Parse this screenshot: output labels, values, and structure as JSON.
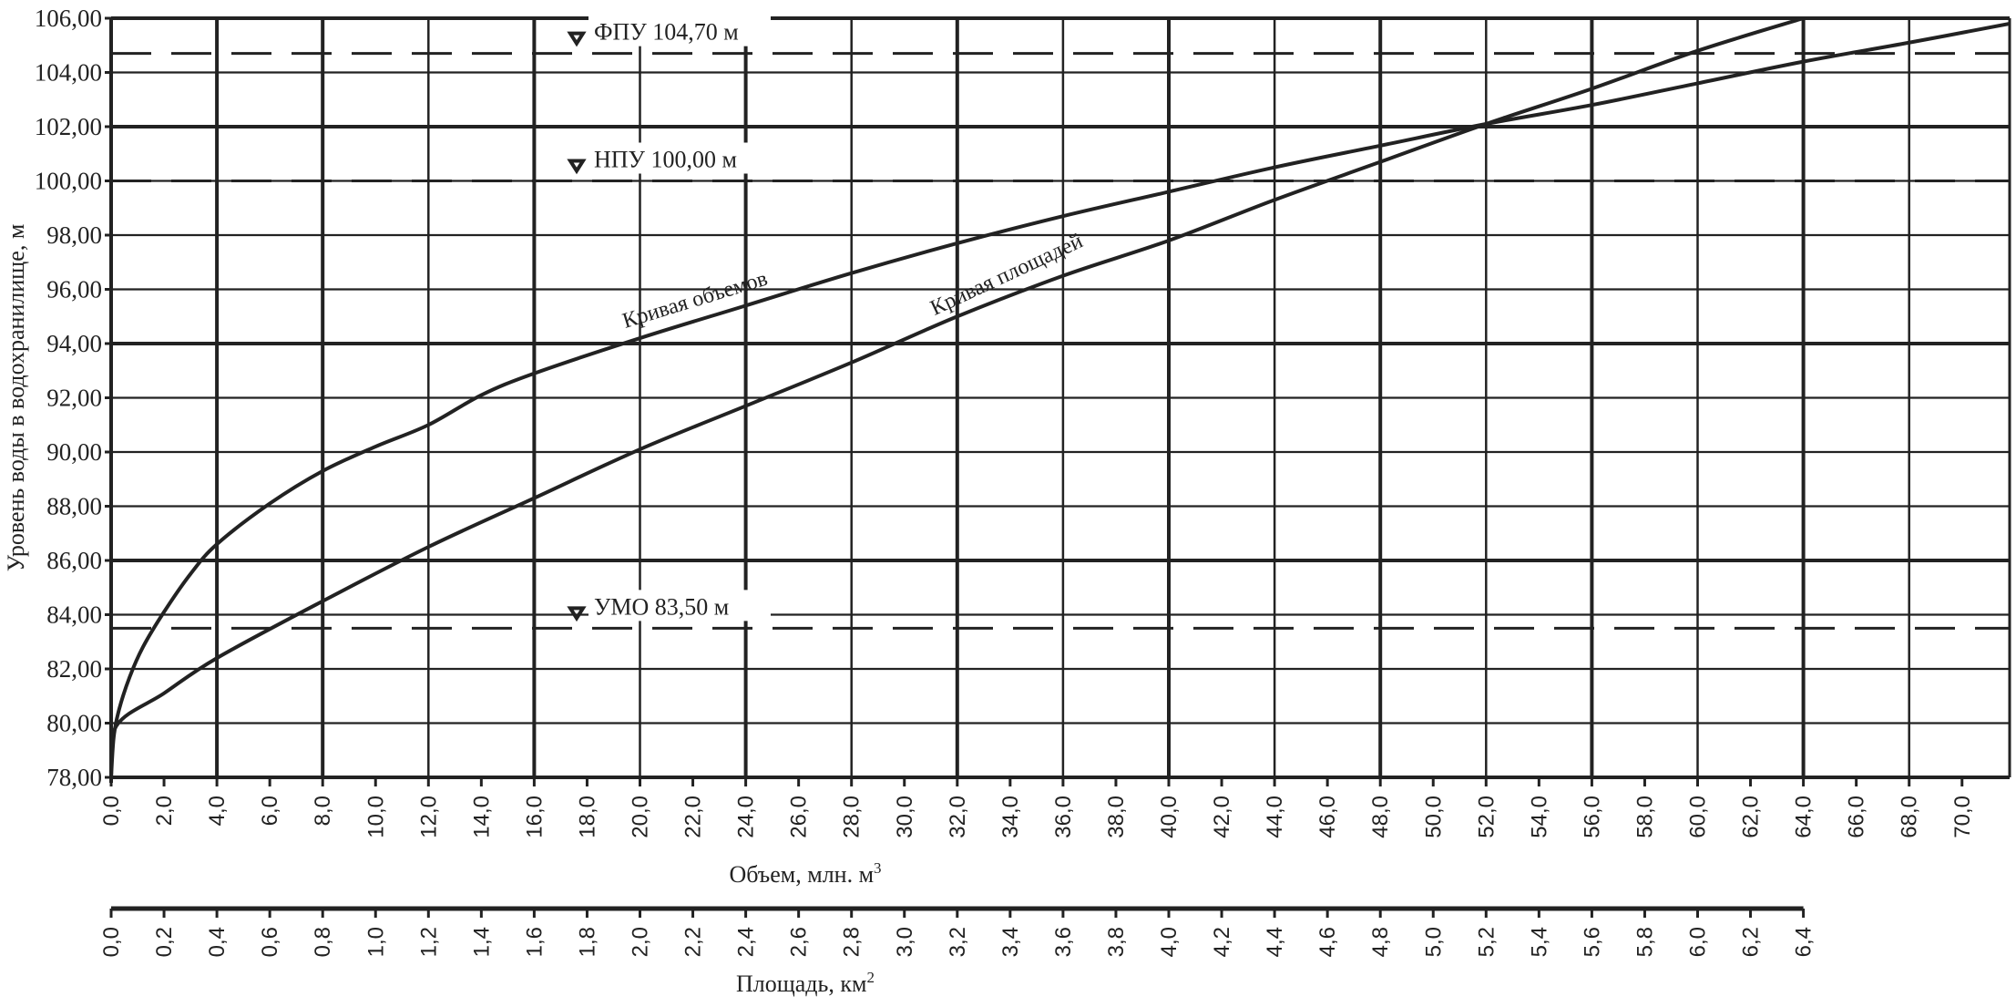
{
  "chart_data": {
    "type": "line",
    "title": "",
    "ylabel": "Уровень воды в водохранилище, м",
    "xlabel": "Объем, млн. м",
    "xlabel_sup": "3",
    "x2label": "Площадь, км",
    "x2label_sup": "2",
    "ylim": [
      78,
      106
    ],
    "xlim": [
      0,
      71.8
    ],
    "x2lim": [
      0,
      7.18
    ],
    "grid": true,
    "line_color": "#222222",
    "y_ticks": [
      "78,00",
      "80,00",
      "82,00",
      "84,00",
      "86,00",
      "88,00",
      "90,00",
      "92,00",
      "94,00",
      "96,00",
      "98,00",
      "100,00",
      "102,00",
      "104,00",
      "106,00"
    ],
    "x_ticks": [
      "0,0",
      "2,0",
      "4,0",
      "6,0",
      "8,0",
      "10,0",
      "12,0",
      "14,0",
      "16,0",
      "18,0",
      "20,0",
      "22,0",
      "24,0",
      "26,0",
      "28,0",
      "30,0",
      "32,0",
      "34,0",
      "36,0",
      "38,0",
      "40,0",
      "42,0",
      "44,0",
      "46,0",
      "48,0",
      "50,0",
      "52,0",
      "54,0",
      "56,0",
      "58,0",
      "60,0",
      "62,0",
      "64,0",
      "66,0",
      "68,0",
      "70,0"
    ],
    "x2_ticks": [
      "0,0",
      "0,2",
      "0,4",
      "0,6",
      "0,8",
      "1,0",
      "1,2",
      "1,4",
      "1,6",
      "1,8",
      "2,0",
      "2,2",
      "2,4",
      "2,6",
      "2,8",
      "3,0",
      "3,2",
      "3,4",
      "3,6",
      "3,8",
      "4,0",
      "4,2",
      "4,4",
      "4,6",
      "4,8",
      "5,0",
      "5,2",
      "5,4",
      "5,6",
      "5,8",
      "6,0",
      "6,2",
      "6,4"
    ],
    "series": [
      {
        "name": "Кривая объемов",
        "axis": "volume",
        "points": [
          [
            0,
            78
          ],
          [
            0.1,
            79.5
          ],
          [
            0.3,
            80.5
          ],
          [
            0.7,
            81.7
          ],
          [
            1.2,
            82.8
          ],
          [
            2,
            84.1
          ],
          [
            3,
            85.5
          ],
          [
            4,
            86.6
          ],
          [
            6,
            88.1
          ],
          [
            8,
            89.3
          ],
          [
            10,
            90.2
          ],
          [
            12,
            91.0
          ],
          [
            14,
            92.1
          ],
          [
            16,
            92.9
          ],
          [
            20,
            94.2
          ],
          [
            24,
            95.4
          ],
          [
            28,
            96.6
          ],
          [
            32,
            97.7
          ],
          [
            36,
            98.7
          ],
          [
            40,
            99.6
          ],
          [
            44,
            100.5
          ],
          [
            48,
            101.3
          ],
          [
            52,
            102.1
          ],
          [
            56,
            102.8
          ],
          [
            60,
            103.6
          ],
          [
            64,
            104.4
          ],
          [
            68,
            105.1
          ],
          [
            71.8,
            105.8
          ]
        ]
      },
      {
        "name": "Кривая площадей",
        "axis": "area",
        "points": [
          [
            0,
            78
          ],
          [
            0.02,
            79.9
          ],
          [
            0.2,
            81.1
          ],
          [
            0.4,
            82.4
          ],
          [
            0.8,
            84.5
          ],
          [
            1.2,
            86.5
          ],
          [
            1.6,
            88.3
          ],
          [
            2.0,
            90.1
          ],
          [
            2.4,
            91.7
          ],
          [
            2.8,
            93.3
          ],
          [
            3.2,
            95.0
          ],
          [
            3.6,
            96.5
          ],
          [
            4.0,
            97.8
          ],
          [
            4.4,
            99.3
          ],
          [
            4.8,
            100.7
          ],
          [
            5.2,
            102.1
          ],
          [
            5.6,
            103.4
          ],
          [
            6.0,
            104.8
          ],
          [
            6.4,
            106.0
          ]
        ]
      }
    ],
    "reference_lines": [
      {
        "label": "ФПУ 104,70 м",
        "y": 104.7,
        "style": "dashed"
      },
      {
        "label": "НПУ 100,00 м",
        "y": 100.0,
        "style": "dashed"
      },
      {
        "label": "УМО 83,50 м",
        "y": 83.5,
        "style": "dashed"
      }
    ],
    "marker_icon": "triangle-down-icon"
  }
}
